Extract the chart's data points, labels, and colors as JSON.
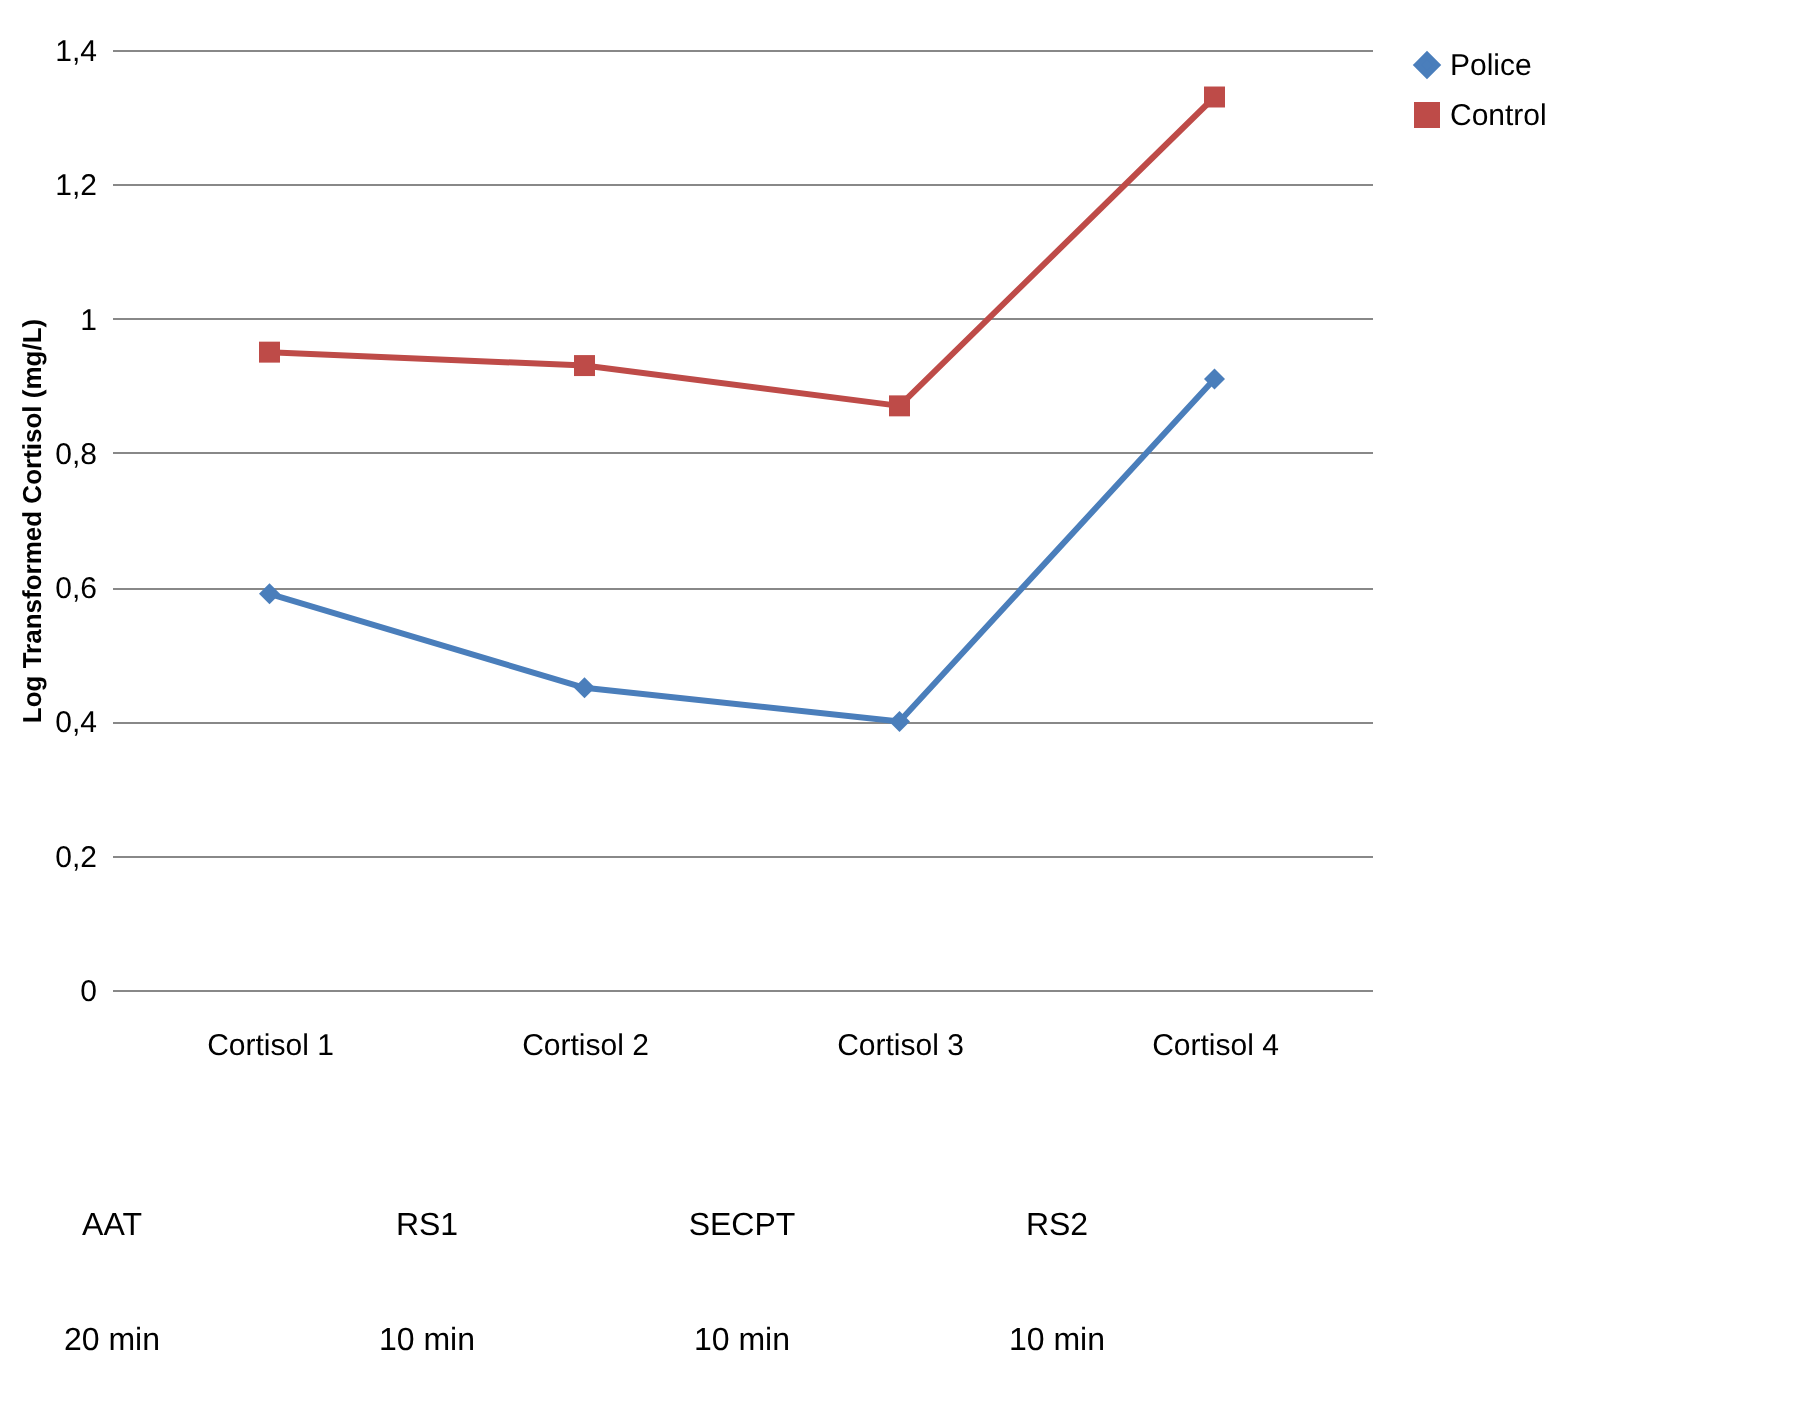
{
  "chart_data": {
    "type": "line",
    "ylabel": "Log Transformed Cortisol (mg/L)",
    "categories": [
      "Cortisol 1",
      "Cortisol 2",
      "Cortisol 3",
      "Cortisol 4"
    ],
    "series": [
      {
        "name": "Police",
        "color": "#4a7ebb",
        "marker": "diamond",
        "values": [
          0.59,
          0.45,
          0.4,
          0.91
        ]
      },
      {
        "name": "Control",
        "color": "#be4b48",
        "marker": "square",
        "values": [
          0.95,
          0.93,
          0.87,
          1.33
        ]
      }
    ],
    "ylim": [
      0,
      1.4
    ],
    "yticks": [
      0,
      {
        "value": 0.2,
        "label": "0,2"
      },
      {
        "value": 0.4,
        "label": "0,4"
      },
      {
        "value": 0.6,
        "label": "0,6"
      },
      {
        "value": 0.8,
        "label": "0,8"
      },
      1,
      {
        "value": 1.2,
        "label": "1,2"
      },
      {
        "value": 1.4,
        "label": "1,4"
      }
    ],
    "grid": "y",
    "legend": "right",
    "line_style": "solid",
    "annotations": [
      "AAT",
      "RS1",
      "SECPT",
      "RS2",
      "20 min",
      "10 min",
      "10 min",
      "10 min"
    ]
  }
}
